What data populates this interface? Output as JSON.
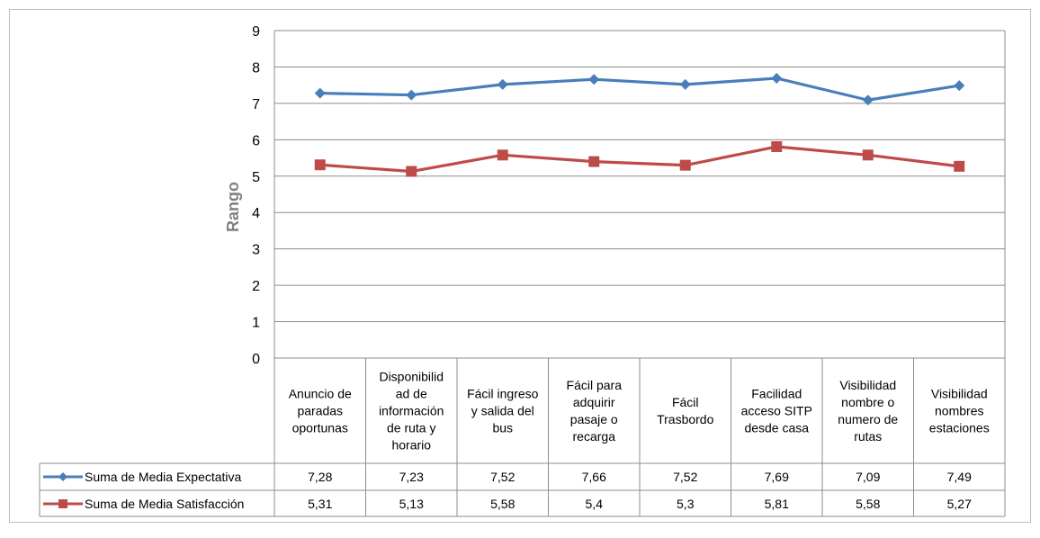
{
  "chart_data": {
    "type": "line",
    "ylabel": "Rango",
    "ylim": [
      0,
      9
    ],
    "yticks": [
      "0",
      "1",
      "2",
      "3",
      "4",
      "5",
      "6",
      "7",
      "8",
      "9"
    ],
    "grid": true,
    "categories": [
      "Anuncio de paradas oportunas",
      "Disponibilidad de información de ruta y horario",
      "Fácil ingreso y salida del bus",
      "Fácil para adquirir pasaje o recarga",
      "Fácil Trasbordo",
      "Facilidad acceso SITP desde casa",
      "Visibilidad nombre o numero de rutas",
      "Visibilidad nombres estaciones"
    ],
    "category_lines": [
      [
        "Anuncio de",
        "paradas",
        "oportunas"
      ],
      [
        "Disponibilid",
        "ad de",
        "información",
        "de ruta y",
        "horario"
      ],
      [
        "Fácil ingreso",
        "y salida del",
        "bus"
      ],
      [
        "Fácil para",
        "adquirir",
        "pasaje o",
        "recarga"
      ],
      [
        "Fácil",
        "Trasbordo"
      ],
      [
        "Facilidad",
        "acceso SITP",
        "desde casa"
      ],
      [
        "Visibilidad",
        "nombre o",
        "numero de",
        "rutas"
      ],
      [
        "Visibilidad",
        "nombres",
        "estaciones"
      ]
    ],
    "series": [
      {
        "name": "Suma de Media Expectativa",
        "color": "#4a7ebb",
        "marker": "diamond",
        "values": [
          7.28,
          7.23,
          7.52,
          7.66,
          7.52,
          7.69,
          7.09,
          7.49
        ],
        "labels": [
          "7,28",
          "7,23",
          "7,52",
          "7,66",
          "7,52",
          "7,69",
          "7,09",
          "7,49"
        ]
      },
      {
        "name": "Suma de Media Satisfacción",
        "color": "#be4b48",
        "marker": "square",
        "values": [
          5.31,
          5.13,
          5.58,
          5.4,
          5.3,
          5.81,
          5.58,
          5.27
        ],
        "labels": [
          "5,31",
          "5,13",
          "5,58",
          "5,4",
          "5,3",
          "5,81",
          "5,58",
          "5,27"
        ]
      }
    ]
  }
}
